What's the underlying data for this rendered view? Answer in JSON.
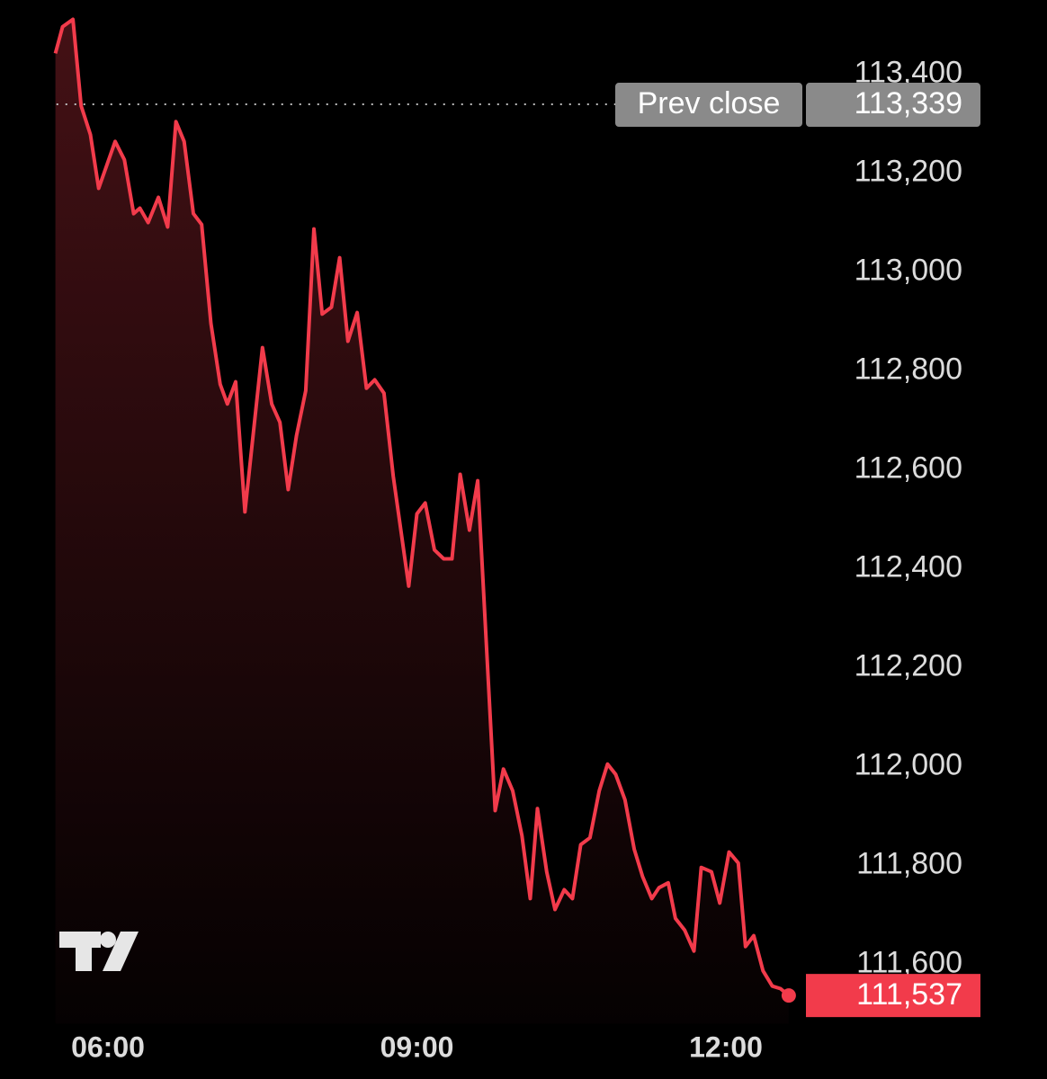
{
  "chart_data": {
    "type": "area-line",
    "x": [
      5.49,
      5.56,
      5.66,
      5.74,
      5.83,
      5.91,
      6.07,
      6.16,
      6.25,
      6.31,
      6.39,
      6.49,
      6.58,
      6.66,
      6.74,
      6.83,
      6.91,
      7.0,
      7.09,
      7.16,
      7.24,
      7.33,
      7.5,
      7.59,
      7.67,
      7.75,
      7.83,
      7.92,
      8.0,
      8.08,
      8.17,
      8.25,
      8.33,
      8.42,
      8.51,
      8.59,
      8.68,
      8.77,
      8.92,
      9.0,
      9.08,
      9.17,
      9.26,
      9.34,
      9.42,
      9.51,
      9.59,
      9.76,
      9.84,
      9.93,
      10.02,
      10.1,
      10.17,
      10.26,
      10.34,
      10.43,
      10.51,
      10.59,
      10.68,
      10.77,
      10.85,
      10.93,
      11.02,
      11.11,
      11.19,
      11.28,
      11.35,
      11.44,
      11.51,
      11.6,
      11.69,
      11.76,
      11.86,
      11.94,
      12.03,
      12.12,
      12.19,
      12.27,
      12.36,
      12.45,
      12.53,
      12.61
    ],
    "values": [
      113442,
      113496,
      113511,
      113336,
      113278,
      113169,
      113264,
      113227,
      113118,
      113129,
      113100,
      113151,
      113091,
      113304,
      113264,
      113118,
      113096,
      112896,
      112773,
      112733,
      112778,
      112515,
      112847,
      112733,
      112696,
      112560,
      112669,
      112760,
      113087,
      112915,
      112929,
      113029,
      112860,
      112918,
      112765,
      112782,
      112755,
      112587,
      112365,
      112511,
      112533,
      112438,
      112420,
      112420,
      112591,
      112478,
      112578,
      111911,
      111995,
      111951,
      111860,
      111733,
      111915,
      111787,
      111711,
      111751,
      111733,
      111842,
      111856,
      111951,
      112005,
      111984,
      111933,
      111833,
      111778,
      111733,
      111755,
      111765,
      111693,
      111669,
      111627,
      111796,
      111787,
      111724,
      111827,
      111805,
      111636,
      111658,
      111587,
      111556,
      111551,
      111537
    ],
    "value_labels": [
      null,
      null,
      null,
      null,
      null,
      null,
      null,
      null,
      null,
      null,
      null,
      null,
      null,
      null,
      null,
      null,
      null,
      null,
      null,
      null,
      null,
      null,
      null,
      null,
      null,
      null,
      null,
      null,
      null,
      null,
      null,
      null,
      null,
      null,
      null,
      null,
      null,
      null,
      null,
      null,
      null,
      null,
      null,
      null,
      null,
      null,
      null,
      null,
      null,
      null,
      null,
      null,
      null,
      null,
      null,
      null,
      null,
      null,
      null,
      null,
      null,
      null,
      null,
      null,
      null,
      null,
      null,
      null,
      null,
      null,
      null,
      null,
      null,
      null,
      null,
      null,
      null,
      null,
      null,
      null,
      null,
      "111,537"
    ],
    "color": "#f23b4b",
    "prev_close": {
      "label": "Prev close",
      "value": 113339,
      "value_label": "113,339"
    },
    "xlim": [
      5.5,
      13.1
    ],
    "xticks": [
      {
        "value": 6,
        "label": "06:00"
      },
      {
        "value": 9,
        "label": "09:00"
      },
      {
        "value": 12,
        "label": "12:00"
      }
    ],
    "ylim": [
      111480,
      113550
    ],
    "yticks": [
      {
        "value": 113400,
        "label": "113,400"
      },
      {
        "value": 113200,
        "label": "113,200"
      },
      {
        "value": 113000,
        "label": "113,000"
      },
      {
        "value": 112800,
        "label": "112,800"
      },
      {
        "value": 112600,
        "label": "112,600"
      },
      {
        "value": 112400,
        "label": "112,400"
      },
      {
        "value": 112200,
        "label": "112,200"
      },
      {
        "value": 112000,
        "label": "112,000"
      },
      {
        "value": 111800,
        "label": "111,800"
      },
      {
        "value": 111600,
        "label": "111,600"
      }
    ]
  }
}
